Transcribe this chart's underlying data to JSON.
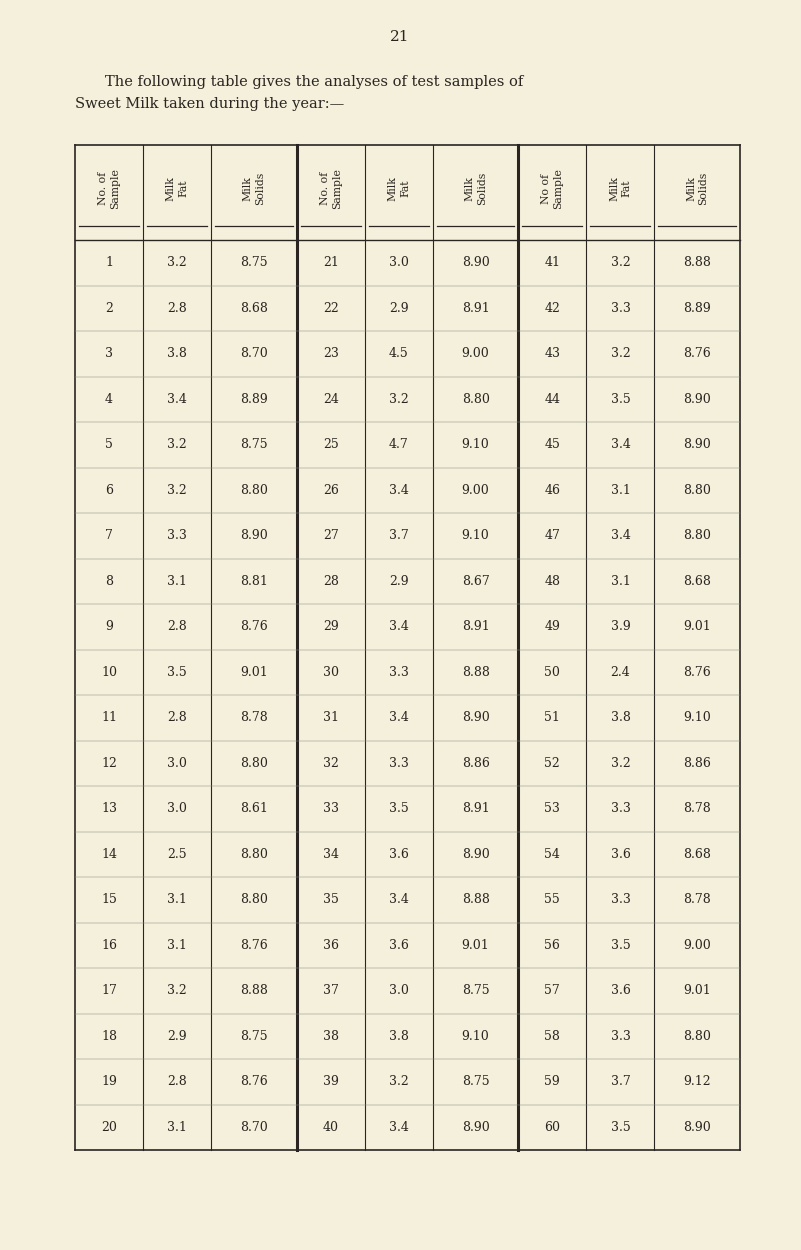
{
  "page_number": "21",
  "title_line1": "    The following table gives the analyses of test samples of",
  "title_line2": "Sweet Milk taken during the year:—",
  "background_color": "#f5f0dc",
  "text_color": "#2a2520",
  "col_headers": [
    "No. of\nSample",
    "Milk\nFat",
    "Milk\nSolids",
    "No. of\nSample",
    "Milk\nFat",
    "Milk\nSolids",
    "No of\nSample",
    "Milk\nFat",
    "Milk\nSolids"
  ],
  "rows": [
    [
      1,
      3.2,
      8.75,
      21,
      3.0,
      8.9,
      41,
      3.2,
      8.88
    ],
    [
      2,
      2.8,
      8.68,
      22,
      2.9,
      8.91,
      42,
      3.3,
      8.89
    ],
    [
      3,
      3.8,
      8.7,
      23,
      4.5,
      9.0,
      43,
      3.2,
      8.76
    ],
    [
      4,
      3.4,
      8.89,
      24,
      3.2,
      8.8,
      44,
      3.5,
      8.9
    ],
    [
      5,
      3.2,
      8.75,
      25,
      4.7,
      9.1,
      45,
      3.4,
      8.9
    ],
    [
      6,
      3.2,
      8.8,
      26,
      3.4,
      9.0,
      46,
      3.1,
      8.8
    ],
    [
      7,
      3.3,
      8.9,
      27,
      3.7,
      9.1,
      47,
      3.4,
      8.8
    ],
    [
      8,
      3.1,
      8.81,
      28,
      2.9,
      8.67,
      48,
      3.1,
      8.68
    ],
    [
      9,
      2.8,
      8.76,
      29,
      3.4,
      8.91,
      49,
      3.9,
      9.01
    ],
    [
      10,
      3.5,
      9.01,
      30,
      3.3,
      8.88,
      50,
      2.4,
      8.76
    ],
    [
      11,
      2.8,
      8.78,
      31,
      3.4,
      8.9,
      51,
      3.8,
      9.1
    ],
    [
      12,
      3.0,
      8.8,
      32,
      3.3,
      8.86,
      52,
      3.2,
      8.86
    ],
    [
      13,
      3.0,
      8.61,
      33,
      3.5,
      8.91,
      53,
      3.3,
      8.78
    ],
    [
      14,
      2.5,
      8.8,
      34,
      3.6,
      8.9,
      54,
      3.6,
      8.68
    ],
    [
      15,
      3.1,
      8.8,
      35,
      3.4,
      8.88,
      55,
      3.3,
      8.78
    ],
    [
      16,
      3.1,
      8.76,
      36,
      3.6,
      9.01,
      56,
      3.5,
      9.0
    ],
    [
      17,
      3.2,
      8.88,
      37,
      3.0,
      8.75,
      57,
      3.6,
      9.01
    ],
    [
      18,
      2.9,
      8.75,
      38,
      3.8,
      9.1,
      58,
      3.3,
      8.8
    ],
    [
      19,
      2.8,
      8.76,
      39,
      3.2,
      8.75,
      59,
      3.7,
      9.12
    ],
    [
      20,
      3.1,
      8.7,
      40,
      3.4,
      8.9,
      60,
      3.5,
      8.9
    ]
  ]
}
